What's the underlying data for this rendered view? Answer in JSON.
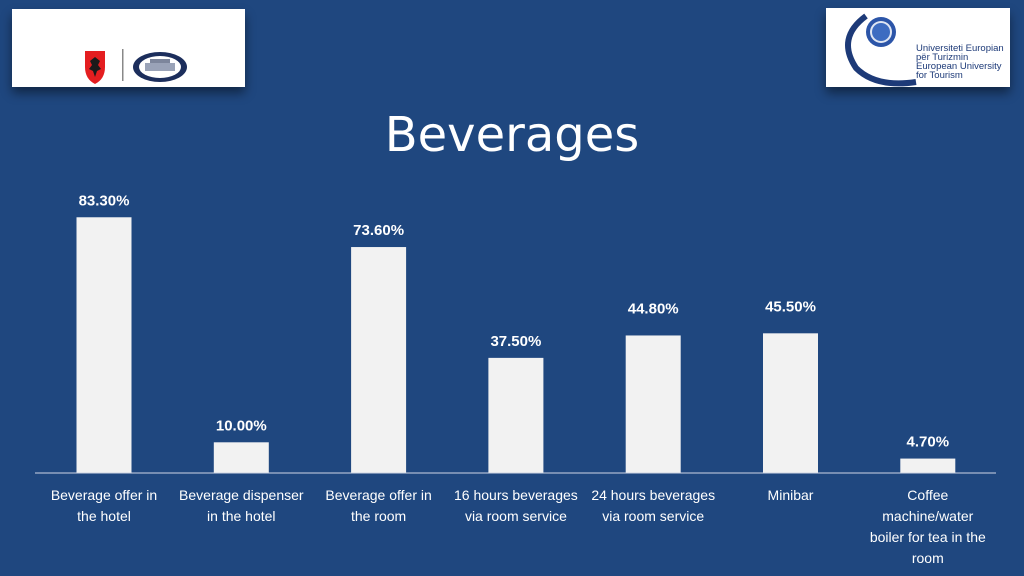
{
  "logos": {
    "left": {
      "icon": "albania-emblem-icon",
      "secondary_icon": "ministry-seal-icon"
    },
    "right": {
      "icon": "eu-stars-icon",
      "lines": [
        "Universiteti Europian",
        "për Turizmin",
        "European University",
        "for Tourism"
      ]
    }
  },
  "title": "Beverages",
  "colors": {
    "background": "#1f477f",
    "bar": "#f2f2f2",
    "text": "#ffffff"
  },
  "chart_data": {
    "type": "bar",
    "title": "Beverages",
    "categories": [
      [
        "Beverage offer in",
        "the hotel"
      ],
      [
        "Beverage dispenser",
        "in the hotel"
      ],
      [
        "Beverage offer in",
        "the room"
      ],
      [
        "16 hours beverages",
        "via room service"
      ],
      [
        "24 hours beverages",
        "via room service"
      ],
      [
        "Minibar"
      ],
      [
        "Coffee",
        "machine/water",
        "boiler for tea in the",
        "room"
      ]
    ],
    "values": [
      83.3,
      10.0,
      73.6,
      37.5,
      44.8,
      45.5,
      4.7
    ],
    "data_labels": [
      "83.30%",
      "10.00%",
      "73.60%",
      "37.50%",
      "44.80%",
      "45.50%",
      "4.70%"
    ],
    "ylim": [
      0,
      100
    ],
    "grid": false,
    "legend": "none"
  }
}
